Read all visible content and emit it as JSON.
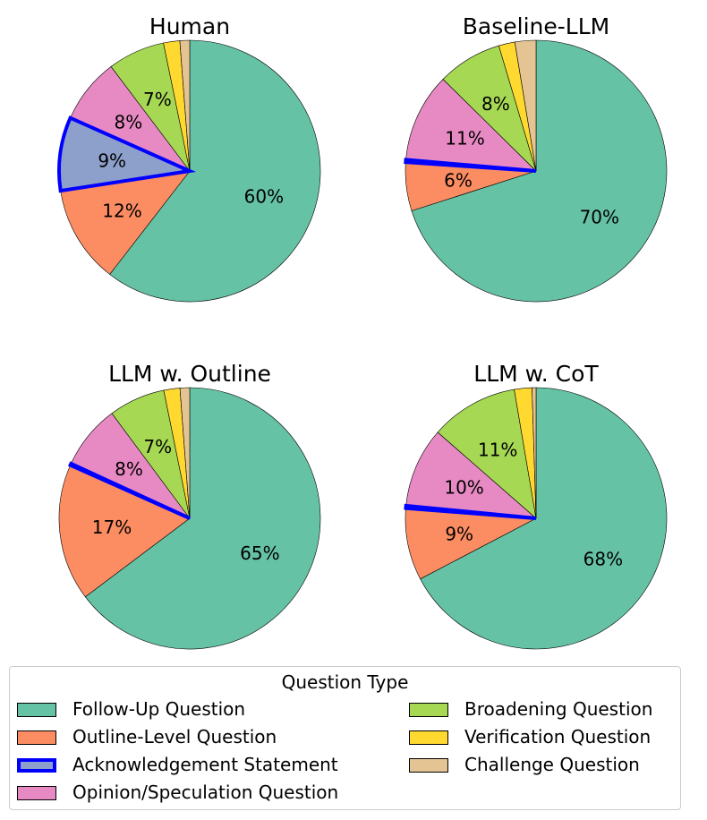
{
  "chart_data": [
    {
      "type": "pie",
      "title": "Human",
      "labels": [
        "Follow-Up Question",
        "Outline-Level Question",
        "Acknowledgement Statement",
        "Opinion/Speculation Question",
        "Broadening Question",
        "Verification Question",
        "Challenge Question"
      ],
      "values": [
        60,
        12,
        9,
        8,
        7,
        2,
        1.2
      ],
      "shown_percent_labels": [
        "60%",
        "12%",
        "9%",
        "8%",
        "7%",
        "",
        ""
      ]
    },
    {
      "type": "pie",
      "title": "Baseline-LLM",
      "labels": [
        "Follow-Up Question",
        "Outline-Level Question",
        "Acknowledgement Statement",
        "Opinion/Speculation Question",
        "Broadening Question",
        "Verification Question",
        "Challenge Question"
      ],
      "values": [
        70,
        6,
        0.3,
        11,
        8,
        2,
        2.6
      ],
      "shown_percent_labels": [
        "70%",
        "6%",
        "",
        "11%",
        "8%",
        "",
        ""
      ]
    },
    {
      "type": "pie",
      "title": "LLM w. Outline",
      "labels": [
        "Follow-Up Question",
        "Outline-Level Question",
        "Acknowledgement Statement",
        "Opinion/Speculation Question",
        "Broadening Question",
        "Verification Question",
        "Challenge Question"
      ],
      "values": [
        65,
        17,
        0.2,
        8,
        7,
        2,
        1.2
      ],
      "shown_percent_labels": [
        "65%",
        "17%",
        "",
        "8%",
        "7%",
        "",
        ""
      ]
    },
    {
      "type": "pie",
      "title": "LLM w. CoT",
      "labels": [
        "Follow-Up Question",
        "Outline-Level Question",
        "Acknowledgement Statement",
        "Opinion/Speculation Question",
        "Broadening Question",
        "Verification Question",
        "Challenge Question"
      ],
      "values": [
        68,
        9,
        0.3,
        10,
        11,
        2.2,
        0.5
      ],
      "shown_percent_labels": [
        "68%",
        "9%",
        "",
        "10%",
        "11%",
        "",
        ""
      ]
    }
  ],
  "colors": [
    "#66c2a5",
    "#fc8d62",
    "#8da0cb",
    "#e78ac3",
    "#a6d854",
    "#ffd92f",
    "#e5c494"
  ],
  "highlight_color": "#0000ff",
  "highlight_category": "Acknowledgement Statement",
  "legend": {
    "title": "Question Type",
    "items": [
      "Follow-Up Question",
      "Outline-Level Question",
      "Acknowledgement Statement",
      "Opinion/Speculation Question",
      "Broadening Question",
      "Verification Question",
      "Challenge Question"
    ]
  }
}
